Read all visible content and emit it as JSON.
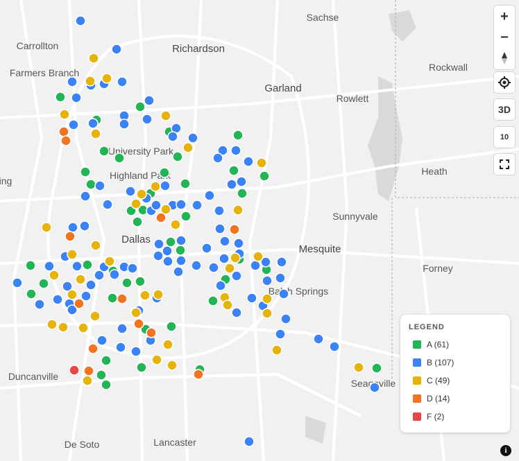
{
  "places": [
    "Sachse",
    "Carrollton",
    "Richardson",
    "Rockwall",
    "Farmers Branch",
    "Garland",
    "Rowlett",
    "University Park",
    "Highland Park",
    "ing",
    "Heath",
    "Sunnyvale",
    "Dallas",
    "Mesquite",
    "Forney",
    "Balch Springs",
    "Duncanville",
    "Seagoville",
    "De Soto",
    "Lancaster"
  ],
  "controls": {
    "zoom_in": "+",
    "zoom_out": "−",
    "view_3d": "3D",
    "count": "10"
  },
  "legend": {
    "title": "LEGEND",
    "items": [
      {
        "label": "A (61)",
        "color": "#22b455"
      },
      {
        "label": "B (107)",
        "color": "#3b82f6"
      },
      {
        "label": "C (49)",
        "color": "#e6b30c"
      },
      {
        "label": "D (14)",
        "color": "#f27420"
      },
      {
        "label": "F (2)",
        "color": "#ea4545"
      }
    ]
  },
  "info": "i"
}
